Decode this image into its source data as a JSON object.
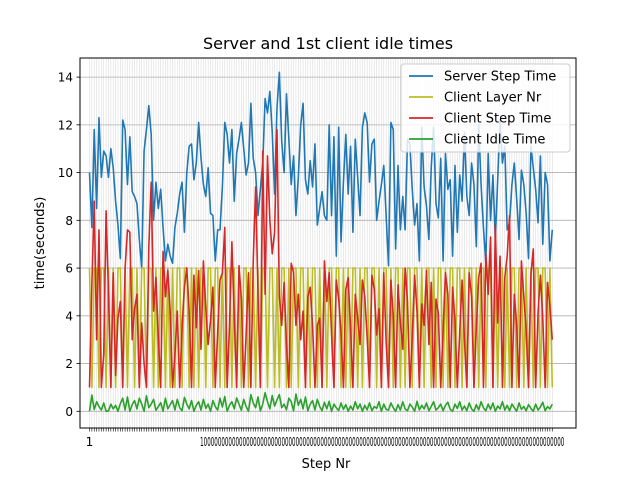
{
  "chart_data": {
    "type": "line",
    "title": "Server and 1st client idle times",
    "xlabel": "Step Nr",
    "ylabel": "time(seconds)",
    "xlim": [
      -3,
      206
    ],
    "ylim": [
      -0.7,
      14.8
    ],
    "yticks": [
      0,
      2,
      4,
      6,
      8,
      10,
      12,
      14
    ],
    "xtick_first_label": "1",
    "xtick_dense_label": "1000000000000000000000000000000000000000000000000000000000000000000000000000000000000000000000000000000",
    "grid": true,
    "legend_position": "top-right",
    "x_start": 1,
    "series": [
      {
        "name": "Server Step Time",
        "color": "#1f77b4",
        "values": [
          10.0,
          7.7,
          11.8,
          8.5,
          12.3,
          9.8,
          10.9,
          10.7,
          9.8,
          11.0,
          10.2,
          8.8,
          7.8,
          6.4,
          12.2,
          11.8,
          9.5,
          11.5,
          9.2,
          9.0,
          8.7,
          7.2,
          6.0,
          10.9,
          11.8,
          12.8,
          11.6,
          8.0,
          9.6,
          8.5,
          9.3,
          7.7,
          6.3,
          7.0,
          6.5,
          6.2,
          7.7,
          8.3,
          9.1,
          9.6,
          7.5,
          10.0,
          11.1,
          11.2,
          9.7,
          10.4,
          12.1,
          10.6,
          9.5,
          9.0,
          10.2,
          8.3,
          8.2,
          6.3,
          7.6,
          7.6,
          9.4,
          12.1,
          11.6,
          10.4,
          11.8,
          8.8,
          10.8,
          11.4,
          12.1,
          11.0,
          9.9,
          10.4,
          12.9,
          10.6,
          10.0,
          8.2,
          9.3,
          10.4,
          13.1,
          12.5,
          13.4,
          11.7,
          9.1,
          12.7,
          14.2,
          11.3,
          10.0,
          13.3,
          11.4,
          9.5,
          10.7,
          8.2,
          9.8,
          12.0,
          12.9,
          9.7,
          9.1,
          10.5,
          9.4,
          11.2,
          7.8,
          8.5,
          9.2,
          8.2,
          8.0,
          12.0,
          8.2,
          11.5,
          6.5,
          11.9,
          7.1,
          9.6,
          11.6,
          9.1,
          11.1,
          7.5,
          11.4,
          9.8,
          8.2,
          11.9,
          12.5,
          12.1,
          9.6,
          11.2,
          11.4,
          8.0,
          8.8,
          9.5,
          10.3,
          8.2,
          6.1,
          12.1,
          11.8,
          6.8,
          10.3,
          7.6,
          9.0,
          7.6,
          11.4,
          11.2,
          9.3,
          7.8,
          8.7,
          6.3,
          11.9,
          9.4,
          8.6,
          7.2,
          10.2,
          11.9,
          8.7,
          8.1,
          10.6,
          6.3,
          10.8,
          9.3,
          9.7,
          6.5,
          10.3,
          7.5,
          9.9,
          8.8,
          11.7,
          9.0,
          8.2,
          10.4,
          9.5,
          6.9,
          12.0,
          9.5,
          7.7,
          6.2,
          10.8,
          8.0,
          9.9,
          7.2,
          9.7,
          12.2,
          10.4,
          11.1,
          7.6,
          7.9,
          9.5,
          10.4,
          8.9,
          7.2,
          10.1,
          9.5,
          8.3,
          6.4,
          11.1,
          10.2,
          9.3,
          7.9,
          10.7,
          7.0,
          10.0,
          9.5,
          6.3,
          7.6
        ]
      },
      {
        "name": "Client Layer Nr",
        "color": "#bcbd22",
        "values": [
          6,
          1,
          6,
          6,
          1,
          6,
          6,
          1,
          6,
          1,
          6,
          1,
          6,
          6,
          1,
          6,
          1,
          6,
          6,
          1,
          6,
          1,
          6,
          6,
          1,
          6,
          6,
          1,
          6,
          1,
          6,
          6,
          1,
          6,
          1,
          6,
          1,
          6,
          6,
          1,
          6,
          6,
          1,
          6,
          1,
          6,
          1,
          6,
          6,
          1,
          6,
          6,
          1,
          6,
          6,
          1,
          6,
          1,
          6,
          6,
          1,
          6,
          1,
          6,
          1,
          6,
          6,
          1,
          6,
          6,
          1,
          6,
          1,
          6,
          6,
          1,
          6,
          6,
          1,
          6,
          1,
          6,
          6,
          1,
          6,
          1,
          6,
          6,
          1,
          6,
          6,
          1,
          6,
          1,
          6,
          6,
          1,
          6,
          1,
          6,
          1,
          6,
          6,
          1,
          6,
          6,
          1,
          6,
          1,
          6,
          1,
          6,
          6,
          1,
          6,
          1,
          6,
          6,
          1,
          6,
          6,
          1,
          6,
          1,
          6,
          6,
          1,
          6,
          1,
          6,
          6,
          1,
          6,
          1,
          6,
          6,
          1,
          6,
          6,
          1,
          6,
          1,
          6,
          6,
          1,
          6,
          1,
          6,
          6,
          1,
          6,
          1,
          6,
          6,
          1,
          6,
          6,
          1,
          6,
          1,
          6,
          6,
          1,
          6,
          1,
          6,
          6,
          1,
          6,
          6,
          1,
          6,
          1,
          6,
          6,
          1,
          6,
          1,
          6,
          6,
          1,
          6,
          6,
          1,
          6,
          1,
          6,
          1,
          6,
          6,
          1,
          6,
          6,
          1,
          6,
          1,
          6,
          6,
          1,
          6
        ]
      },
      {
        "name": "Client Step Time",
        "color": "#d62728",
        "values": [
          1.0,
          5.3,
          8.8,
          3.0,
          7.6,
          1.0,
          2.4,
          8.4,
          4.9,
          1.0,
          5.8,
          1.5,
          3.9,
          4.6,
          1.0,
          6.0,
          7.6,
          7.5,
          3.0,
          4.3,
          4.9,
          1.0,
          3.7,
          2.0,
          1.0,
          6.9,
          9.6,
          4.2,
          5.6,
          3.1,
          1.0,
          6.7,
          4.8,
          5.9,
          4.2,
          1.0,
          2.4,
          4.2,
          1.0,
          3.5,
          5.2,
          6.0,
          4.2,
          1.0,
          5.7,
          3.5,
          5.9,
          2.6,
          6.3,
          4.3,
          2.8,
          3.8,
          5.2,
          1.0,
          3.3,
          5.5,
          5.8,
          7.7,
          1.0,
          3.6,
          7.1,
          3.9,
          1.0,
          6.1,
          4.7,
          1.0,
          3.2,
          5.8,
          1.0,
          6.3,
          9.4,
          4.9,
          1.0,
          10.9,
          4.9,
          10.7,
          8.0,
          6.6,
          7.5,
          11.8,
          4.8,
          3.6,
          5.4,
          2.8,
          1.0,
          6.2,
          5.8,
          3.6,
          4.9,
          3.0,
          4.2,
          1.0,
          4.8,
          5.2,
          3.6,
          1.0,
          3.6,
          3.9,
          1.0,
          6.3,
          4.6,
          5.8,
          3.2,
          1.0,
          5.5,
          4.7,
          3.3,
          1.0,
          5.1,
          5.6,
          3.5,
          1.0,
          4.9,
          3.9,
          2.8,
          5.5,
          4.8,
          3.1,
          1.0,
          5.7,
          5.1,
          3.2,
          4.3,
          1.0,
          5.8,
          2.9,
          1.0,
          5.5,
          4.0,
          1.0,
          5.3,
          3.7,
          2.6,
          6.0,
          4.6,
          1.0,
          3.1,
          5.7,
          4.2,
          1.0,
          4.5,
          3.6,
          5.9,
          2.8,
          5.4,
          1.0,
          4.7,
          4.1,
          1.0,
          3.4,
          5.8,
          4.9,
          1.0,
          5.2,
          3.8,
          1.0,
          3.3,
          5.5,
          3.0,
          1.0,
          5.8,
          4.8,
          1.0,
          3.5,
          5.6,
          6.2,
          1.0,
          6.6,
          4.9,
          7.3,
          1.0,
          7.8,
          3.7,
          6.5,
          1.0,
          5.6,
          6.5,
          8.2,
          1.0,
          4.9,
          3.6,
          1.0,
          6.3,
          4.8,
          3.4,
          1.0,
          5.7,
          6.8,
          1.0,
          4.1,
          5.7,
          3.9,
          1.0,
          5.4,
          4.4,
          3.0,
          1.0,
          1.0
        ]
      },
      {
        "name": "Client Idle Time",
        "color": "#2ca02c",
        "values": [
          0.0,
          0.68,
          0.07,
          0.4,
          0.2,
          0.05,
          0.35,
          0.0,
          0.02,
          0.3,
          0.1,
          0.25,
          0.0,
          0.32,
          0.55,
          0.05,
          0.6,
          0.0,
          0.28,
          0.45,
          0.1,
          0.55,
          0.3,
          0.0,
          0.65,
          0.15,
          0.3,
          0.5,
          0.04,
          0.2,
          0.36,
          0.0,
          0.55,
          0.1,
          0.28,
          0.45,
          0.05,
          0.5,
          0.15,
          0.02,
          0.58,
          0.3,
          0.1,
          0.45,
          0.0,
          0.25,
          0.4,
          0.05,
          0.5,
          0.12,
          0.3,
          0.0,
          0.45,
          0.2,
          0.05,
          0.55,
          0.18,
          0.62,
          0.0,
          0.25,
          0.4,
          0.1,
          0.56,
          0.3,
          0.04,
          0.5,
          0.2,
          0.0,
          0.7,
          0.35,
          0.15,
          0.6,
          0.02,
          0.3,
          0.78,
          0.4,
          0.1,
          0.66,
          0.22,
          0.48,
          0.7,
          0.15,
          0.3,
          0.06,
          0.55,
          0.4,
          0.02,
          0.72,
          0.25,
          0.5,
          0.1,
          0.6,
          0.02,
          0.3,
          0.45,
          0.05,
          0.5,
          0.2,
          0.02,
          0.38,
          0.1,
          0.42,
          0.0,
          0.3,
          0.15,
          0.03,
          0.35,
          0.08,
          0.28,
          0.0,
          0.22,
          0.05,
          0.4,
          0.1,
          0.3,
          0.0,
          0.25,
          0.06,
          0.35,
          0.02,
          0.2,
          0.12,
          0.4,
          0.0,
          0.3,
          0.08,
          0.05,
          0.35,
          0.15,
          0.0,
          0.28,
          0.05,
          0.4,
          0.1,
          0.02,
          0.3,
          0.18,
          0.0,
          0.42,
          0.06,
          0.25,
          0.1,
          0.35,
          0.02,
          0.2,
          0.4,
          0.05,
          0.15,
          0.3,
          0.02,
          0.25,
          0.38,
          0.08,
          0.0,
          0.3,
          0.12,
          0.4,
          0.05,
          0.22,
          0.02,
          0.35,
          0.1,
          0.0,
          0.28,
          0.06,
          0.4,
          0.15,
          0.02,
          0.3,
          0.08,
          0.35,
          0.0,
          0.22,
          0.1,
          0.4,
          0.05,
          0.25,
          0.02,
          0.3,
          0.15,
          0.0,
          0.35,
          0.08,
          0.2,
          0.02,
          0.28,
          0.12,
          0.0,
          0.3,
          0.05,
          0.18,
          0.38,
          0.02,
          0.2,
          0.1,
          0.3,
          0.0,
          0.12,
          0.25,
          0.05,
          0.0,
          0.15,
          0.0,
          0.02
        ]
      }
    ]
  }
}
